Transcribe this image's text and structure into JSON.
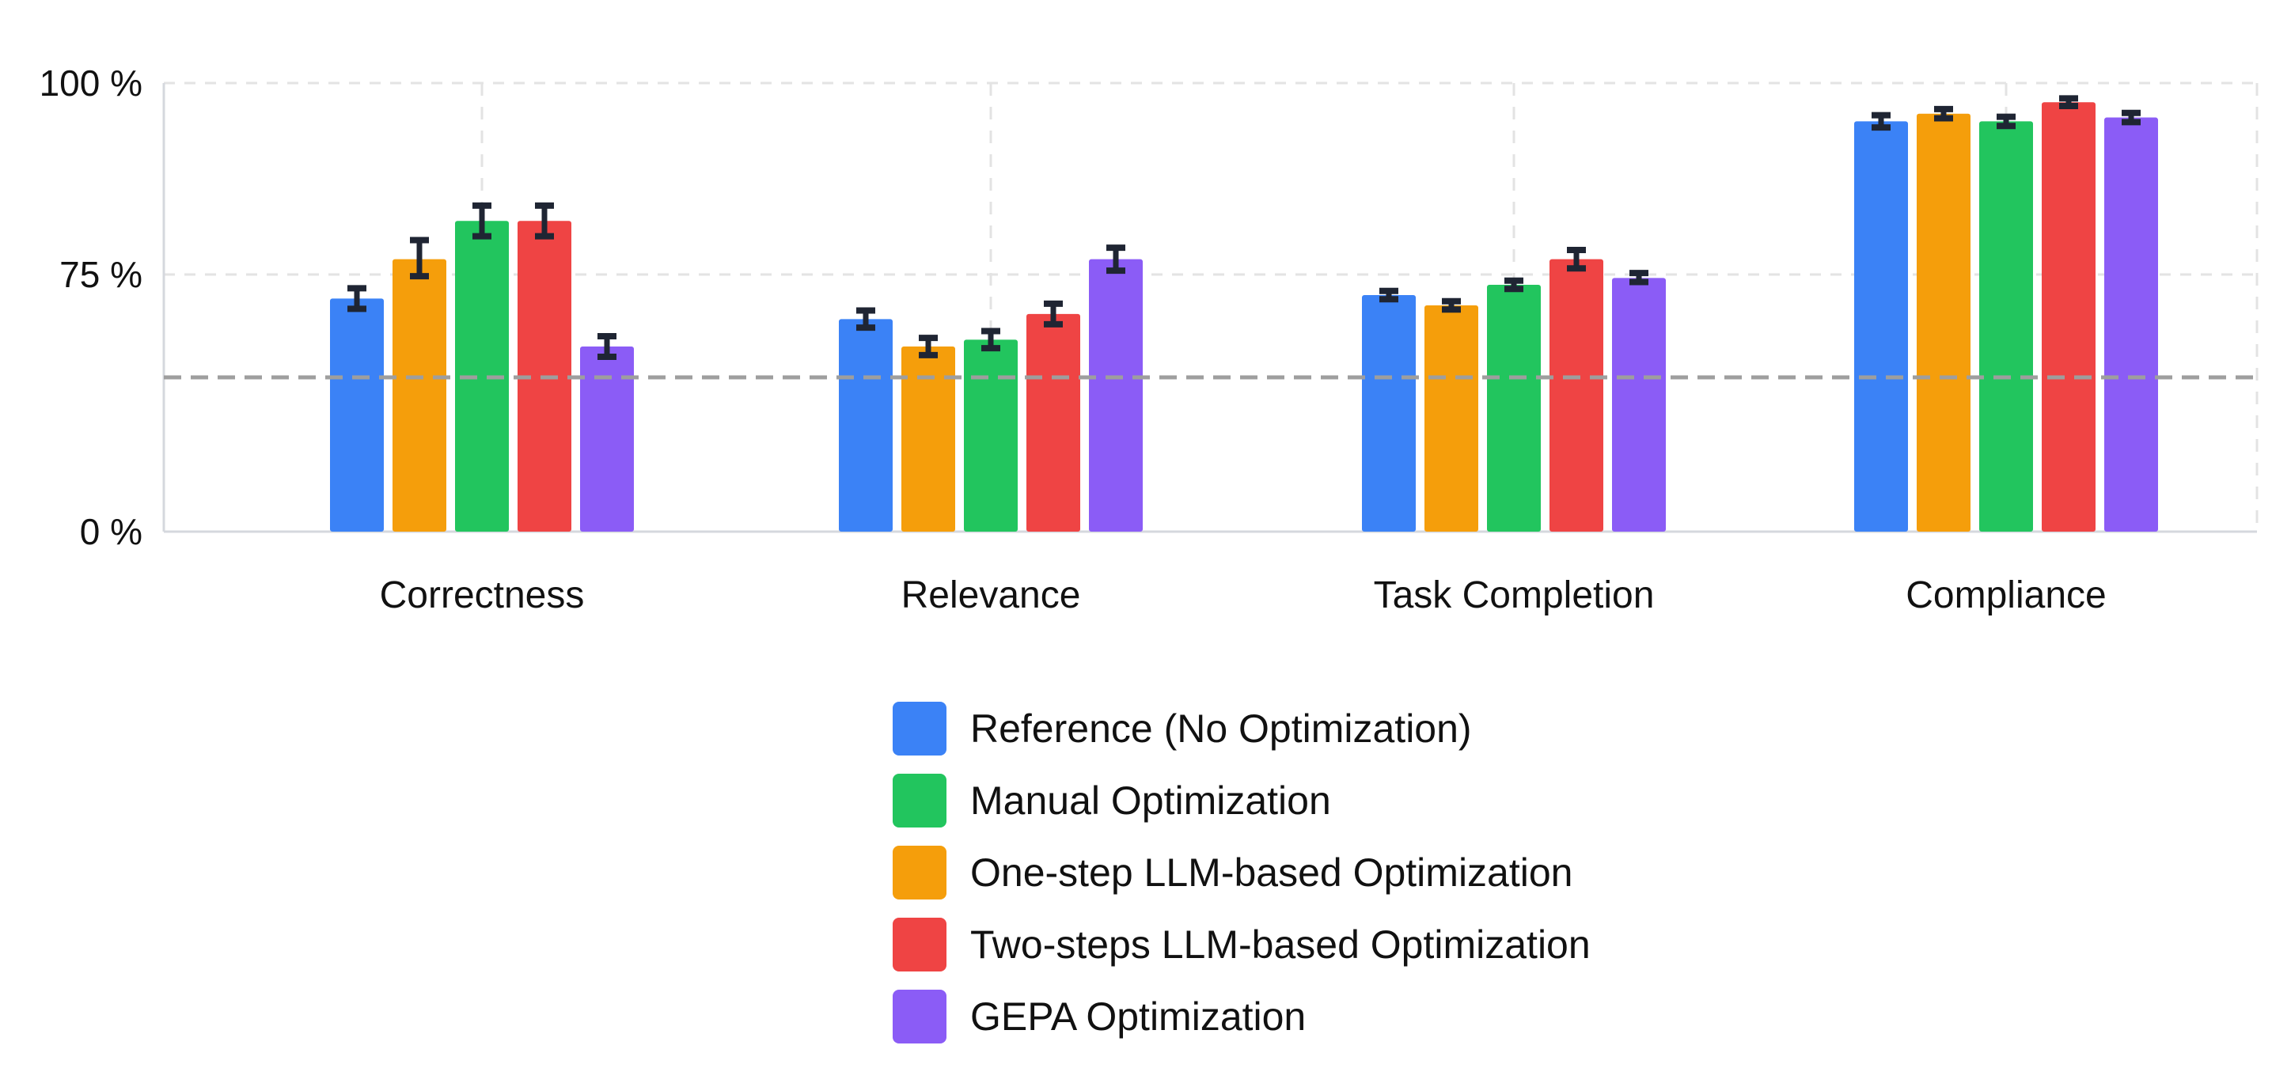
{
  "chart_data": {
    "type": "bar",
    "title": "",
    "xlabel": "",
    "ylabel": "",
    "ylim": [
      0,
      100
    ],
    "y_ticks": [
      0,
      75,
      100
    ],
    "y_tick_labels": [
      "0 %",
      "75 %",
      "100 %"
    ],
    "grid": true,
    "legend_position": "bottom-center",
    "reference_line": 45,
    "categories": [
      "Correctness",
      "Relevance",
      "Task Completion",
      "Compliance"
    ],
    "series": [
      {
        "name": "Reference (No Optimization)",
        "color": "#3b82f6",
        "values": [
          68,
          62,
          69,
          95
        ],
        "errors": [
          3,
          2.5,
          1.2,
          0.8
        ]
      },
      {
        "name": "One-step LLM-based Optimization",
        "color": "#f59e0b",
        "values": [
          77,
          54,
          66,
          96
        ],
        "errors": [
          2.5,
          2.5,
          1.2,
          0.6
        ]
      },
      {
        "name": "Manual Optimization",
        "color": "#22c55e",
        "values": [
          82,
          56,
          72,
          95
        ],
        "errors": [
          2,
          2.5,
          1.2,
          0.6
        ]
      },
      {
        "name": "Two-steps LLM-based Optimization",
        "color": "#ef4444",
        "values": [
          82,
          63.5,
          77,
          97.5
        ],
        "errors": [
          2,
          3,
          1.2,
          0.5
        ]
      },
      {
        "name": "GEPA Optimization",
        "color": "#8b5cf6",
        "values": [
          54,
          77,
          74,
          95.5
        ],
        "errors": [
          3,
          1.5,
          1.2,
          0.6
        ]
      }
    ],
    "legend_order": [
      0,
      2,
      1,
      3,
      4
    ]
  }
}
